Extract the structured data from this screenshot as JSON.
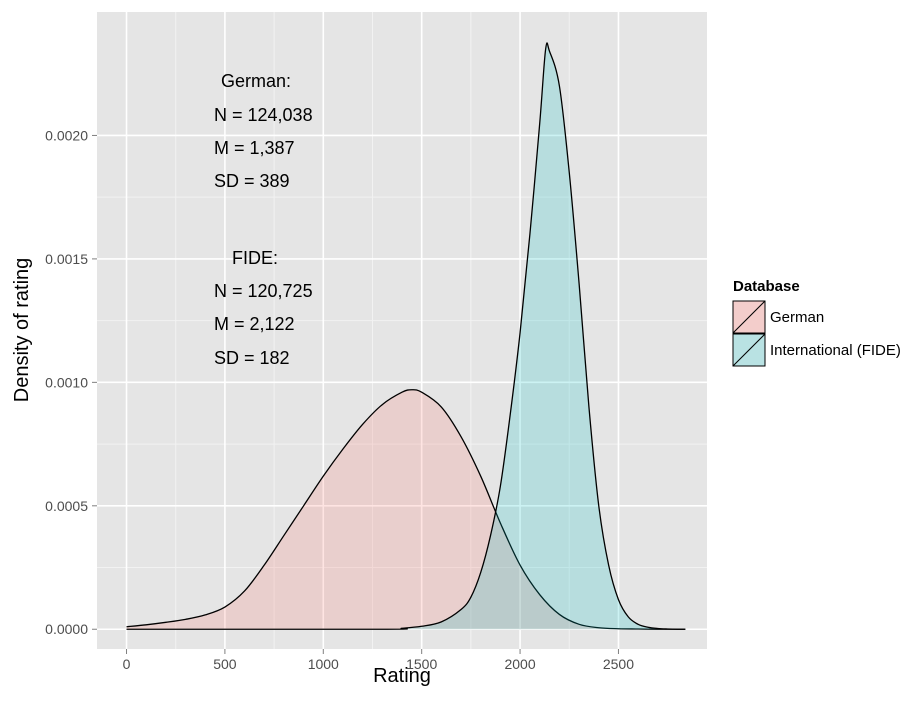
{
  "chart_data": {
    "type": "area",
    "title": "",
    "xlabel": "Rating",
    "ylabel": "Density of rating",
    "xlim": [
      -150,
      2950
    ],
    "ylim": [
      -8e-05,
      0.0025
    ],
    "xticks": [
      0,
      500,
      1000,
      1500,
      2000,
      2500
    ],
    "xtick_labels": [
      "0",
      "500",
      "1000",
      "1500",
      "2000",
      "2500"
    ],
    "yticks": [
      0,
      0.0005,
      0.001,
      0.0015,
      0.002
    ],
    "ytick_labels": [
      "0.0000",
      "0.0005",
      "0.0010",
      "0.0015",
      "0.0020"
    ],
    "grid": true,
    "legend_position": "right",
    "legend_title": "Database",
    "series": [
      {
        "name": "German",
        "color": "#f8766d",
        "x": [
          0,
          100,
          200,
          300,
          400,
          500,
          600,
          700,
          800,
          900,
          1000,
          1100,
          1200,
          1300,
          1400,
          1450,
          1500,
          1600,
          1700,
          1800,
          1900,
          2000,
          2100,
          2200,
          2300,
          2400,
          2500,
          2600,
          2700,
          2800,
          2840
        ],
        "y": [
          1e-05,
          1.8e-05,
          2.8e-05,
          4e-05,
          5.8e-05,
          9e-05,
          0.000155,
          0.00026,
          0.00038,
          0.0005,
          0.00062,
          0.00073,
          0.00083,
          0.00091,
          0.00096,
          0.00097,
          0.00096,
          0.0009,
          0.00078,
          0.00062,
          0.00043,
          0.00026,
          0.00014,
          6e-05,
          2e-05,
          6e-06,
          2e-06,
          1e-06,
          0,
          0,
          0
        ]
      },
      {
        "name": "International (FIDE)",
        "color": "#00bfc4",
        "x": [
          0,
          1300,
          1400,
          1500,
          1600,
          1700,
          1750,
          1800,
          1850,
          1900,
          1950,
          2000,
          2050,
          2100,
          2130,
          2150,
          2200,
          2250,
          2300,
          2350,
          2400,
          2450,
          2500,
          2550,
          2600,
          2650,
          2700,
          2750,
          2800,
          2840
        ],
        "y": [
          0,
          0,
          4e-06,
          1.2e-05,
          3e-05,
          8e-05,
          0.00013,
          0.00023,
          0.00038,
          0.00058,
          0.00087,
          0.0012,
          0.0016,
          0.00205,
          0.00235,
          0.00234,
          0.0022,
          0.00185,
          0.0014,
          0.0009,
          0.0005,
          0.00026,
          0.00012,
          5e-05,
          2e-05,
          8e-06,
          3e-06,
          1e-06,
          0,
          0
        ]
      }
    ],
    "annotations": [
      {
        "lines": [
          "German:",
          "N = 124,038",
          "M = 1,387",
          "SD = 389"
        ]
      },
      {
        "lines": [
          "FIDE:",
          "N = 120,725",
          "M = 2,122",
          "SD = 182"
        ]
      }
    ]
  }
}
